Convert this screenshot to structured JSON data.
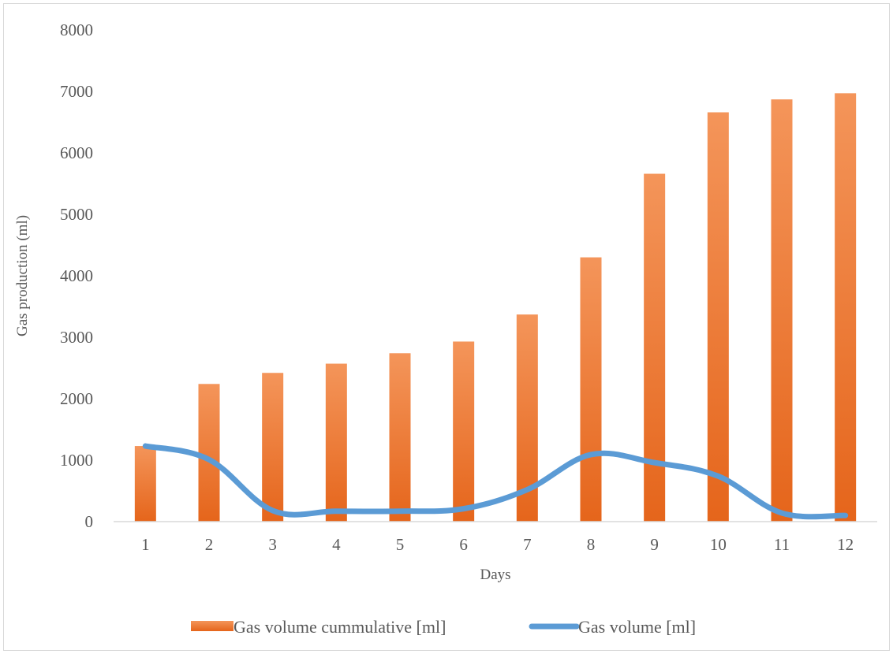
{
  "chart_data": {
    "type": "bar",
    "categories": [
      "1",
      "2",
      "3",
      "4",
      "5",
      "6",
      "7",
      "8",
      "9",
      "10",
      "11",
      "12"
    ],
    "series": [
      {
        "name": "Gas volume cummulative [ml]",
        "kind": "bar",
        "values": [
          1230,
          2240,
          2420,
          2570,
          2740,
          2930,
          3370,
          4300,
          5660,
          6660,
          6870,
          6970
        ]
      },
      {
        "name": "Gas volume [ml]",
        "kind": "line",
        "smooth": true,
        "values": [
          1230,
          1010,
          180,
          170,
          170,
          210,
          520,
          1090,
          960,
          740,
          140,
          100
        ]
      }
    ],
    "title": "",
    "xlabel": "Days",
    "ylabel": "Gas production (ml)",
    "ylim": [
      0,
      8000
    ],
    "yticks": [
      "0",
      "1000",
      "2000",
      "3000",
      "4000",
      "5000",
      "6000",
      "7000",
      "8000"
    ],
    "grid": false,
    "legend": "bottom",
    "colors": {
      "bar_light": "#f4955a",
      "bar_dark": "#e5651b",
      "line": "#5b9bd5",
      "axis": "#d9d9d9",
      "text": "#595959"
    }
  }
}
